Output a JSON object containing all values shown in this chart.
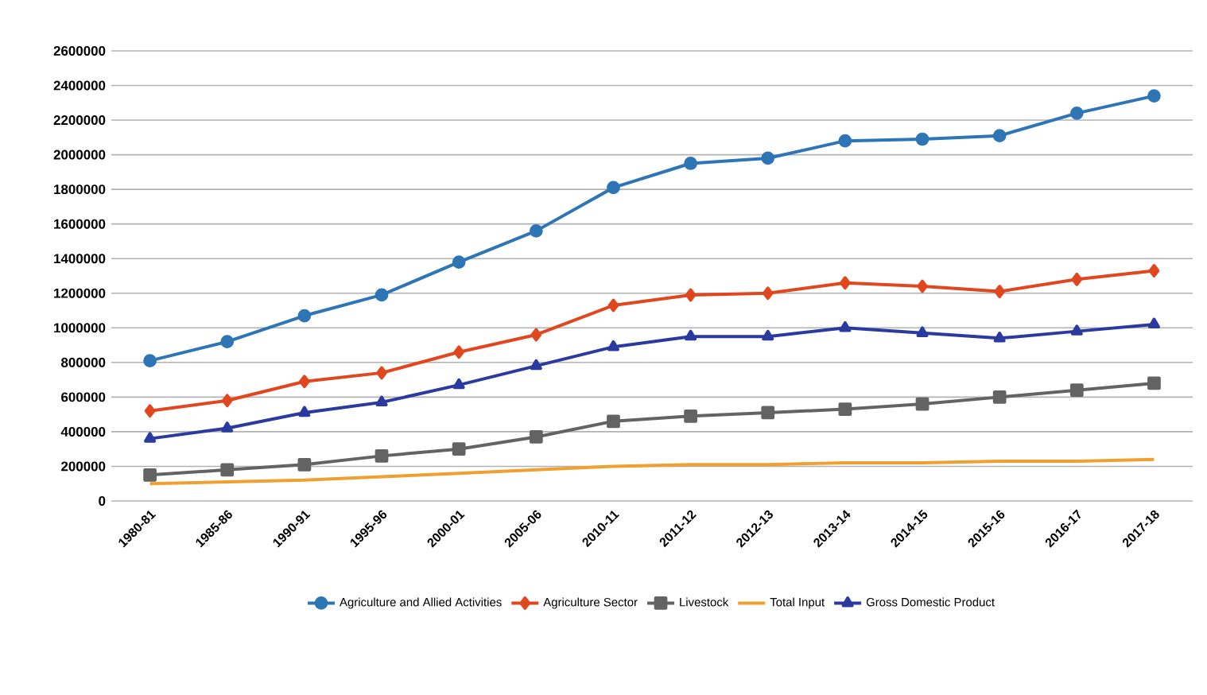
{
  "chart_data": {
    "type": "line",
    "categories": [
      "1980-81",
      "1985-86",
      "1990-91",
      "1995-96",
      "2000-01",
      "2005-06",
      "2010-11",
      "2011-12",
      "2012-13",
      "2013-14",
      "2014-15",
      "2015-16",
      "2016-17",
      "2017-18"
    ],
    "series": [
      {
        "name": "Agriculture and Allied Activities",
        "color": "#2e75b6",
        "marker": "circle",
        "values": [
          810000,
          920000,
          1070000,
          1190000,
          1380000,
          1560000,
          1810000,
          1950000,
          1980000,
          2080000,
          2090000,
          2110000,
          2240000,
          2340000
        ]
      },
      {
        "name": "Agriculture Sector",
        "color": "#e0471f",
        "marker": "diamond",
        "values": [
          520000,
          580000,
          690000,
          740000,
          860000,
          960000,
          1130000,
          1190000,
          1200000,
          1260000,
          1240000,
          1210000,
          1280000,
          1330000
        ]
      },
      {
        "name": "Livestock",
        "color": "#636363",
        "marker": "square",
        "values": [
          150000,
          180000,
          210000,
          260000,
          300000,
          370000,
          460000,
          490000,
          510000,
          530000,
          560000,
          600000,
          640000,
          680000
        ]
      },
      {
        "name": "Total Input",
        "color": "#f0a030",
        "marker": "none",
        "values": [
          100000,
          110000,
          120000,
          140000,
          160000,
          180000,
          200000,
          210000,
          210000,
          220000,
          220000,
          230000,
          230000,
          240000
        ]
      },
      {
        "name": "Gross Domestic Product",
        "color": "#2a3a9e",
        "marker": "triangle",
        "values": [
          360000,
          420000,
          510000,
          570000,
          670000,
          780000,
          890000,
          950000,
          950000,
          1000000,
          970000,
          940000,
          980000,
          1020000
        ]
      }
    ],
    "ylim": [
      0,
      2600000
    ],
    "yticks": [
      0,
      200000,
      400000,
      600000,
      800000,
      1000000,
      1200000,
      1400000,
      1600000,
      1800000,
      2000000,
      2200000,
      2400000,
      2600000
    ],
    "grid": "y",
    "legend": "bottom",
    "line_style": "solid"
  }
}
